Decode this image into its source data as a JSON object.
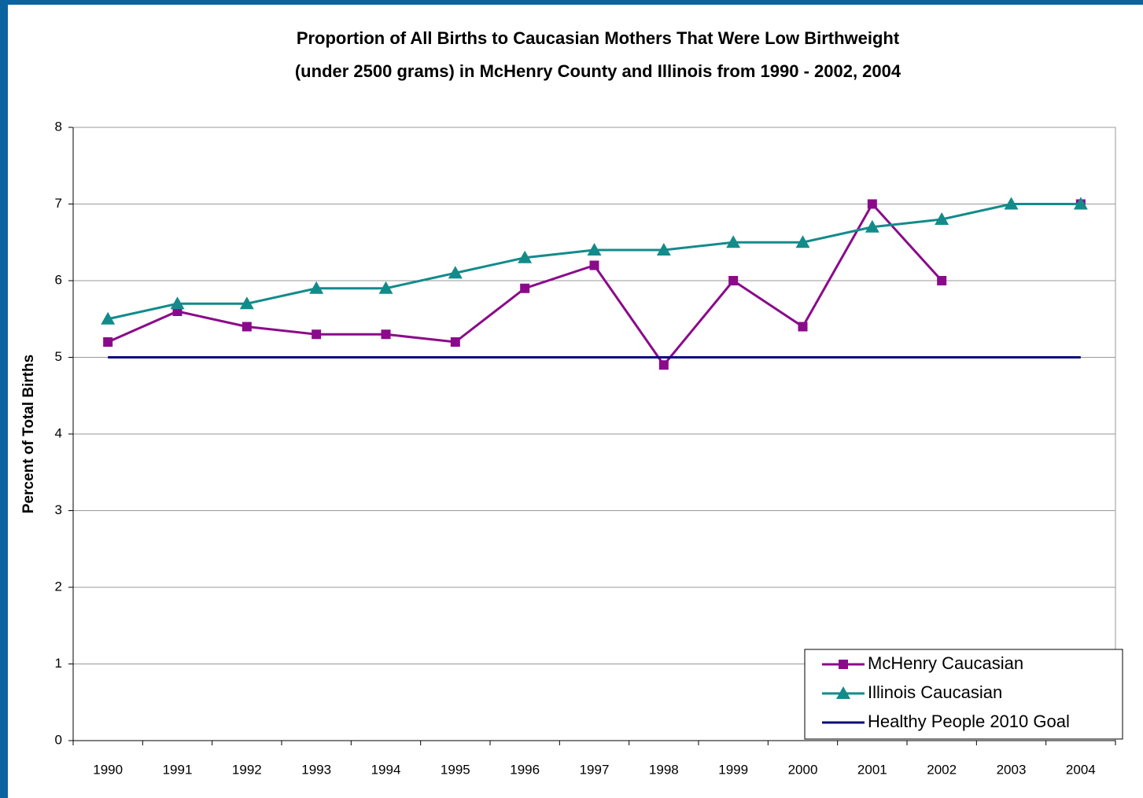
{
  "chart_data": {
    "type": "line",
    "title": [
      "Proportion of All Births to Caucasian Mothers That Were Low Birthweight",
      "(under 2500 grams) in McHenry County and Illinois from 1990 - 2002, 2004"
    ],
    "y_label": "Percent of Total Births",
    "categories": [
      "1990",
      "1991",
      "1992",
      "1993",
      "1994",
      "1995",
      "1996",
      "1997",
      "1998",
      "1999",
      "2000",
      "2001",
      "2002",
      "2003",
      "2004"
    ],
    "series": [
      {
        "name": "McHenry Caucasian",
        "color": "#8b0a8b",
        "marker": "square",
        "values": [
          5.2,
          5.6,
          5.4,
          5.3,
          5.3,
          5.2,
          5.9,
          6.2,
          4.9,
          6.0,
          5.4,
          7.0,
          6.0,
          null,
          7.0
        ]
      },
      {
        "name": "Illinois Caucasian",
        "color": "#138b8b",
        "marker": "triangle",
        "values": [
          5.5,
          5.7,
          5.7,
          5.9,
          5.9,
          6.1,
          6.3,
          6.4,
          6.4,
          6.5,
          6.5,
          6.7,
          6.8,
          7.0,
          7.0
        ]
      },
      {
        "name": "Healthy People 2010 Goal",
        "color": "#0a0a7a",
        "marker": "none",
        "values": [
          5,
          5,
          5,
          5,
          5,
          5,
          5,
          5,
          5,
          5,
          5,
          5,
          5,
          5,
          5
        ]
      }
    ],
    "ylim": [
      0,
      8
    ],
    "yticks": [
      0,
      1,
      2,
      3,
      4,
      5,
      6,
      7,
      8
    ],
    "grid": true,
    "legend": "lower right"
  }
}
